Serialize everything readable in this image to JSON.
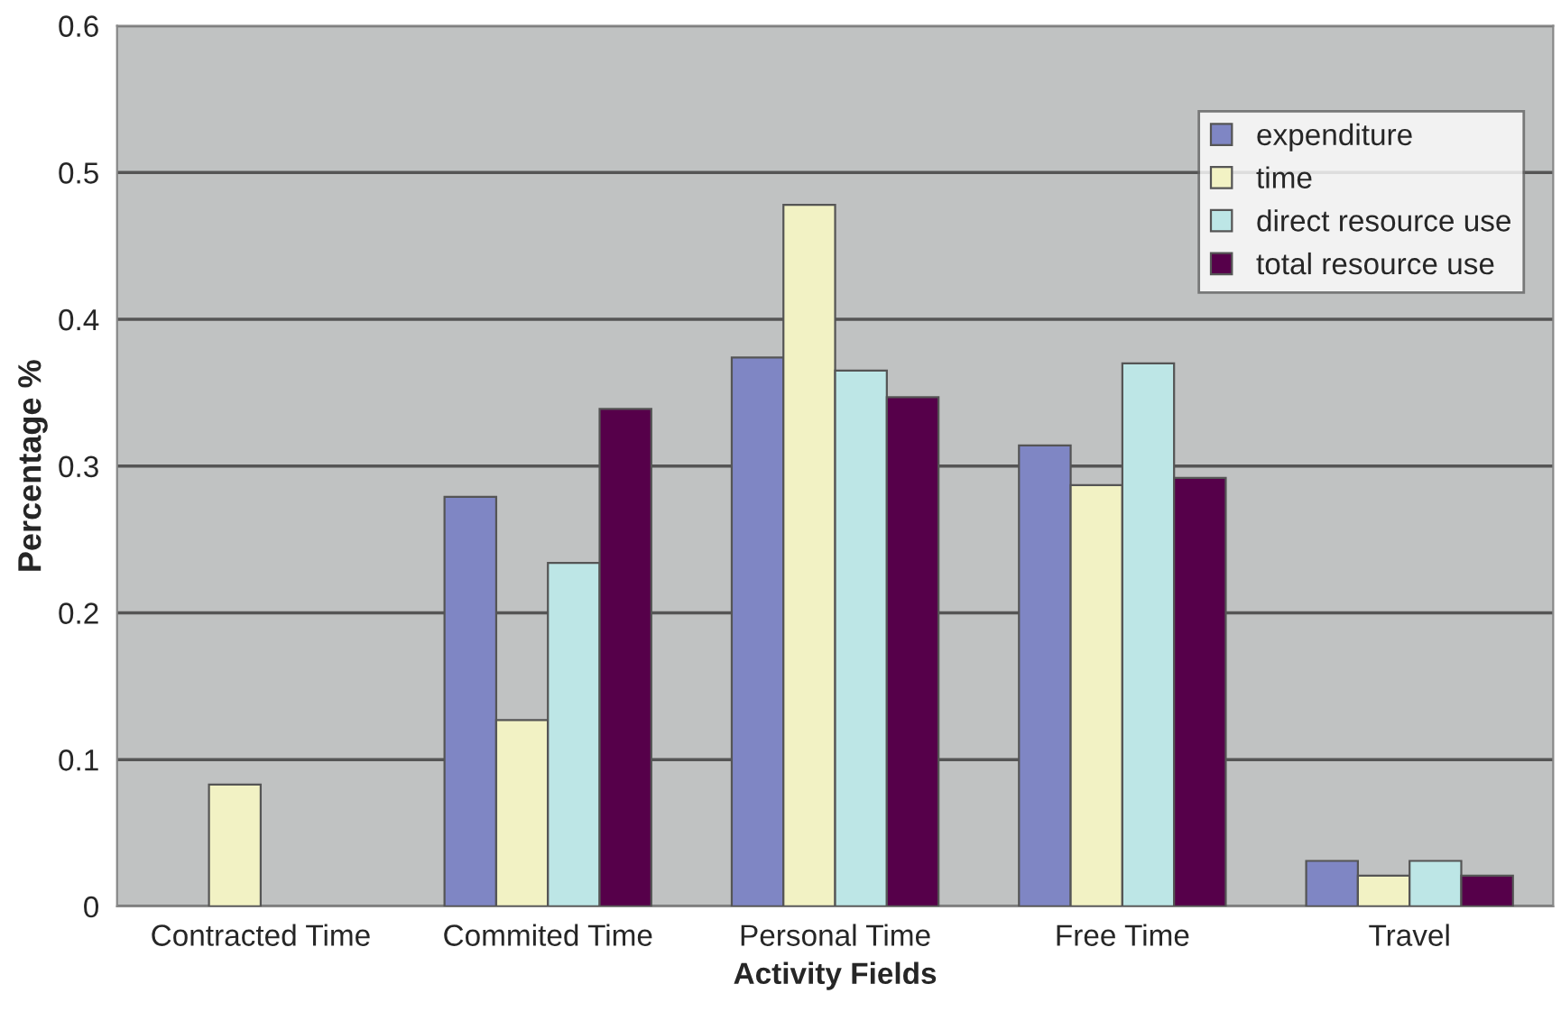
{
  "chart_data": {
    "type": "bar",
    "xlabel": "Activity Fields",
    "ylabel": "Percentage %",
    "categories": [
      "Contracted Time",
      "Commited Time",
      "Personal Time",
      "Free Time",
      "Travel"
    ],
    "series": [
      {
        "name": "expenditure",
        "color": "#7f86c4",
        "values": [
          null,
          0.279,
          0.374,
          0.314,
          0.031
        ]
      },
      {
        "name": "time",
        "color": "#f2f2c4",
        "values": [
          0.083,
          0.127,
          0.478,
          0.287,
          0.021
        ]
      },
      {
        "name": "direct resource use",
        "color": "#bde6e6",
        "values": [
          null,
          0.234,
          0.365,
          0.37,
          0.031
        ]
      },
      {
        "name": "total resource use",
        "color": "#56004a",
        "values": [
          null,
          0.339,
          0.347,
          0.292,
          0.021
        ]
      }
    ],
    "ylim": [
      0,
      0.6
    ],
    "yticks": [
      0,
      0.1,
      0.2,
      0.3,
      0.4,
      0.5,
      0.6
    ],
    "grid": "y",
    "legend": "top right"
  }
}
